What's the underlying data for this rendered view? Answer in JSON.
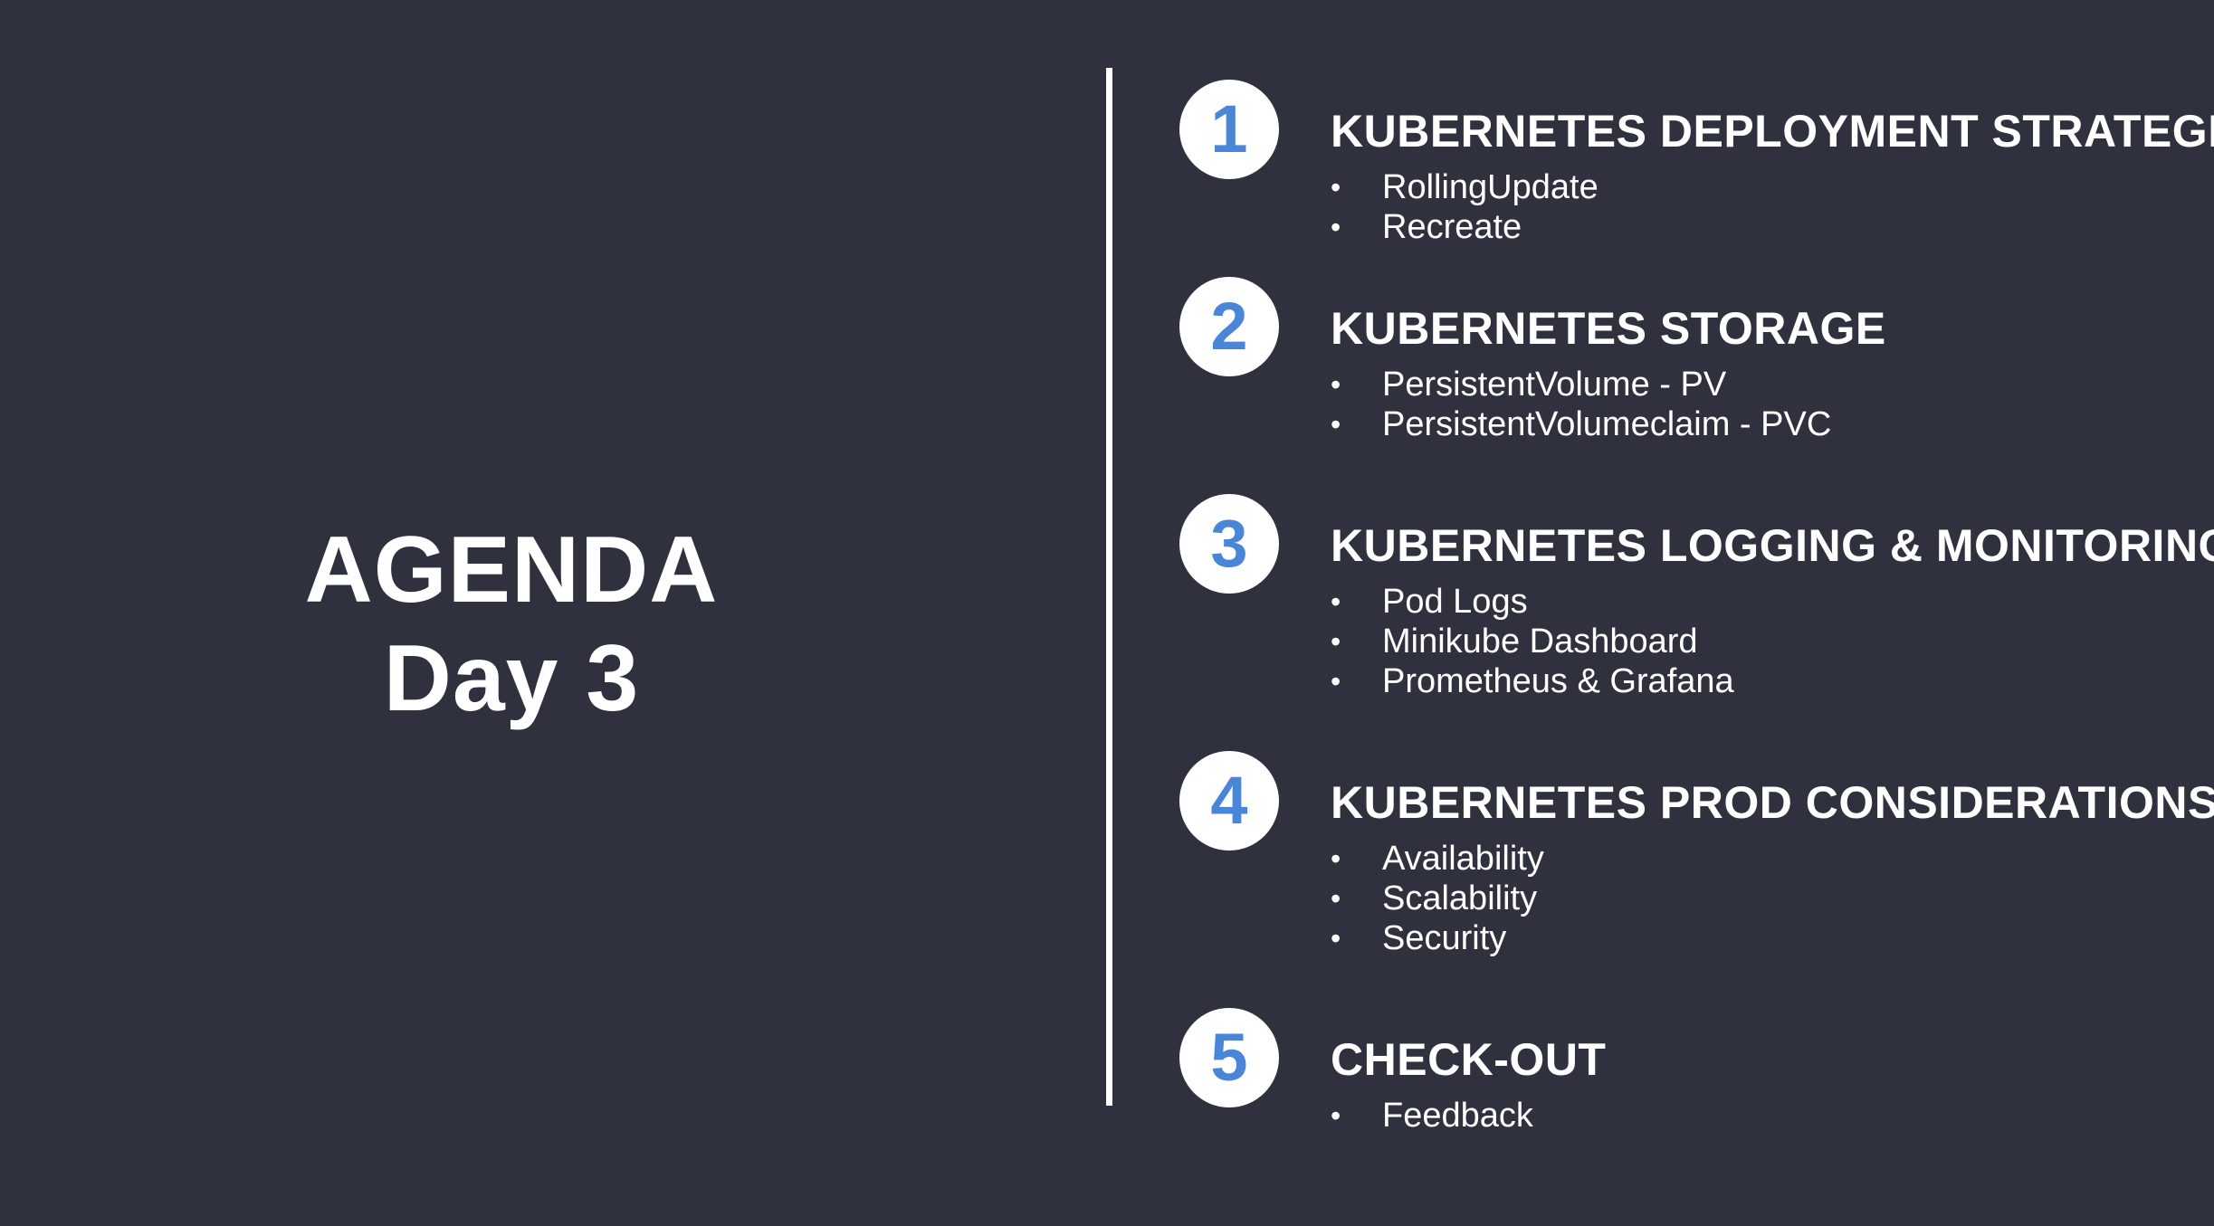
{
  "slide": {
    "background": "#2f313e",
    "title": "AGENDA",
    "subtitle": "Day 3",
    "text_color": "#ffffff",
    "accent_color": "#4a86d8",
    "items": [
      {
        "number": "1",
        "heading": "KUBERNETES DEPLOYMENT STRATEGIES",
        "bullets": [
          "RollingUpdate",
          "Recreate"
        ]
      },
      {
        "number": "2",
        "heading": "KUBERNETES STORAGE",
        "bullets": [
          "PersistentVolume - PV",
          "PersistentVolumeclaim - PVC"
        ]
      },
      {
        "number": "3",
        "heading": "KUBERNETES LOGGING & MONITORING",
        "bullets": [
          "Pod Logs",
          "Minikube Dashboard",
          "Prometheus & Grafana"
        ]
      },
      {
        "number": "4",
        "heading": "KUBERNETES PROD CONSIDERATIONS",
        "bullets": [
          "Availability",
          "Scalability",
          "Security"
        ]
      },
      {
        "number": "5",
        "heading": "CHECK-OUT",
        "bullets": [
          "Feedback"
        ]
      }
    ]
  }
}
